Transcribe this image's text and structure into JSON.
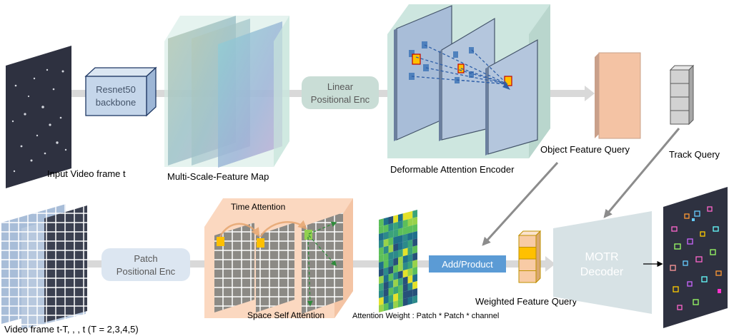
{
  "labels": {
    "input_frame": "Input Video frame t",
    "backbone_line1": "Resnet50",
    "backbone_line2": "backbone",
    "feature_map": "Multi-Scale-Feature Map",
    "linear_line1": "Linear",
    "linear_line2": "Positional Enc",
    "deformable": "Deformable Attention Encoder",
    "object_query": "Object Feature Query",
    "track_query": "Track Query",
    "video_frames": "Video frame t-T, , , t (T = 2,3,4,5)",
    "patch_line1": "Patch",
    "patch_line2": "Positional Enc",
    "time_attention": "Time Attention",
    "space_attention": "Space Self Attention",
    "attention_weight": "Attention Weight : Patch * Patch * channel",
    "add_product": "Add/Product",
    "weighted_query": "Weighted Feature Query",
    "decoder_line1": "MOTR",
    "decoder_line2": "Decoder"
  },
  "colors": {
    "flow_arrow": "#d9d9d9",
    "backbone_fill": "#c5d6ea",
    "linear_box": "#c9ddd6",
    "encoder_bg": "#cde6df",
    "encoder_plane": "#a8bdd8",
    "object_query": "#f4c3a4",
    "track_query": "#d2d2d2",
    "temporal_bg": "#fbd8c0",
    "add_product": "#5b9bd5",
    "decoder": "#d7e2e5",
    "weighted_orange": "#f8cba5",
    "weighted_gold": "#ffc000"
  }
}
